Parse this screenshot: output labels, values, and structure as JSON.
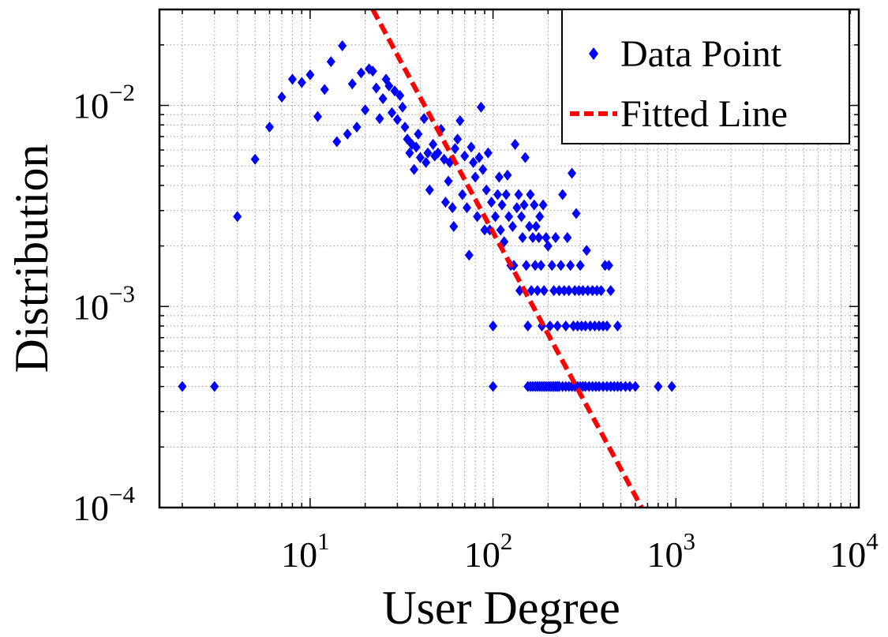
{
  "chart_data": {
    "type": "scatter",
    "xlabel": "User Degree",
    "ylabel": "Distribution",
    "xscale": "log",
    "yscale": "log",
    "xlim": [
      1.5,
      10000
    ],
    "ylim": [
      0.0001,
      0.03
    ],
    "grid": "on",
    "legend_position": "top-right",
    "x_ticks": [
      {
        "base": "10",
        "exp": "1"
      },
      {
        "base": "10",
        "exp": "2"
      },
      {
        "base": "10",
        "exp": "3"
      },
      {
        "base": "10",
        "exp": "4"
      }
    ],
    "y_ticks": [
      {
        "base": "10",
        "exp": "−4"
      },
      {
        "base": "10",
        "exp": "−3"
      },
      {
        "base": "10",
        "exp": "−2"
      }
    ],
    "series": [
      {
        "name": "Data Point",
        "kind": "scatter",
        "marker": "diamond",
        "color": "#0000ff",
        "points": [
          [
            2,
            0.0004
          ],
          [
            3,
            0.0004
          ],
          [
            4,
            0.0028
          ],
          [
            5,
            0.0054
          ],
          [
            6,
            0.0078
          ],
          [
            7,
            0.011
          ],
          [
            8,
            0.0135
          ],
          [
            9,
            0.013
          ],
          [
            10,
            0.0142
          ],
          [
            11,
            0.0088
          ],
          [
            12,
            0.012
          ],
          [
            13,
            0.0165
          ],
          [
            14,
            0.0066
          ],
          [
            15,
            0.0198
          ],
          [
            16,
            0.0072
          ],
          [
            17,
            0.0128
          ],
          [
            18,
            0.0078
          ],
          [
            19,
            0.0145
          ],
          [
            20,
            0.0095
          ],
          [
            21,
            0.0152
          ],
          [
            22,
            0.0148
          ],
          [
            23,
            0.0122
          ],
          [
            24,
            0.0086
          ],
          [
            25,
            0.0108
          ],
          [
            26,
            0.0135
          ],
          [
            27,
            0.0125
          ],
          [
            28,
            0.0092
          ],
          [
            29,
            0.0118
          ],
          [
            30,
            0.0085
          ],
          [
            31,
            0.0112
          ],
          [
            32,
            0.0098
          ],
          [
            33,
            0.0078
          ],
          [
            34,
            0.0068
          ],
          [
            35,
            0.0058
          ],
          [
            36,
            0.0064
          ],
          [
            37,
            0.0048
          ],
          [
            38,
            0.0062
          ],
          [
            39,
            0.0072
          ],
          [
            40,
            0.0055
          ],
          [
            42,
            0.0086
          ],
          [
            43,
            0.0052
          ],
          [
            44,
            0.0058
          ],
          [
            45,
            0.0038
          ],
          [
            47,
            0.0064
          ],
          [
            48,
            0.0056
          ],
          [
            50,
            0.0058
          ],
          [
            52,
            0.0076
          ],
          [
            54,
            0.0054
          ],
          [
            55,
            0.0033
          ],
          [
            57,
            0.0042
          ],
          [
            58,
            0.0052
          ],
          [
            60,
            0.0031
          ],
          [
            61,
            0.0025
          ],
          [
            62,
            0.0061
          ],
          [
            64,
            0.0068
          ],
          [
            66,
            0.0084
          ],
          [
            68,
            0.0036
          ],
          [
            70,
            0.0056
          ],
          [
            72,
            0.0031
          ],
          [
            74,
            0.0018
          ],
          [
            76,
            0.0062
          ],
          [
            78,
            0.0052
          ],
          [
            80,
            0.0044
          ],
          [
            82,
            0.0028
          ],
          [
            84,
            0.0055
          ],
          [
            86,
            0.0098
          ],
          [
            88,
            0.0048
          ],
          [
            90,
            0.0024
          ],
          [
            92,
            0.0038
          ],
          [
            94,
            0.0058
          ],
          [
            96,
            0.0024
          ],
          [
            98,
            0.0033
          ],
          [
            100,
            0.0008
          ],
          [
            100,
            0.0004
          ],
          [
            103,
            0.0028
          ],
          [
            106,
            0.0036
          ],
          [
            108,
            0.0044
          ],
          [
            110,
            0.0024
          ],
          [
            112,
            0.0032
          ],
          [
            115,
            0.0021
          ],
          [
            118,
            0.0036
          ],
          [
            120,
            0.0045
          ],
          [
            122,
            0.0028
          ],
          [
            125,
            0.0016
          ],
          [
            128,
            0.0025
          ],
          [
            130,
            0.0016
          ],
          [
            132,
            0.0064
          ],
          [
            135,
            0.0031
          ],
          [
            138,
            0.0036
          ],
          [
            140,
            0.0012
          ],
          [
            143,
            0.0028
          ],
          [
            145,
            0.0022
          ],
          [
            148,
            0.0032
          ],
          [
            150,
            0.0055
          ],
          [
            152,
            0.0016
          ],
          [
            155,
            0.0008
          ],
          [
            158,
            0.0025
          ],
          [
            160,
            0.0036
          ],
          [
            162,
            0.0012
          ],
          [
            165,
            0.0022
          ],
          [
            168,
            0.0032
          ],
          [
            170,
            0.0016
          ],
          [
            172,
            0.0025
          ],
          [
            175,
            0.0012
          ],
          [
            178,
            0.0022
          ],
          [
            180,
            0.0028
          ],
          [
            183,
            0.0016
          ],
          [
            185,
            0.0008
          ],
          [
            188,
            0.0032
          ],
          [
            190,
            0.0012
          ],
          [
            195,
            0.0022
          ],
          [
            200,
            0.002
          ],
          [
            205,
            0.0008
          ],
          [
            210,
            0.0016
          ],
          [
            215,
            0.0012
          ],
          [
            220,
            0.0022
          ],
          [
            225,
            0.0008
          ],
          [
            230,
            0.0012
          ],
          [
            235,
            0.0016
          ],
          [
            240,
            0.0036
          ],
          [
            245,
            0.0012
          ],
          [
            250,
            0.0008
          ],
          [
            255,
            0.0022
          ],
          [
            260,
            0.0012
          ],
          [
            265,
            0.0016
          ],
          [
            270,
            0.0046
          ],
          [
            275,
            0.0008
          ],
          [
            280,
            0.0012
          ],
          [
            285,
            0.0029
          ],
          [
            290,
            0.0008
          ],
          [
            295,
            0.0012
          ],
          [
            300,
            0.0016
          ],
          [
            305,
            0.0008
          ],
          [
            310,
            0.0012
          ],
          [
            320,
            0.0008
          ],
          [
            325,
            0.0019
          ],
          [
            330,
            0.0012
          ],
          [
            340,
            0.0008
          ],
          [
            350,
            0.0012
          ],
          [
            360,
            0.0008
          ],
          [
            370,
            0.0012
          ],
          [
            380,
            0.0008
          ],
          [
            390,
            0.0012
          ],
          [
            400,
            0.0008
          ],
          [
            410,
            0.0016
          ],
          [
            420,
            0.0008
          ],
          [
            430,
            0.0016
          ],
          [
            440,
            0.0012
          ],
          [
            480,
            0.0008
          ],
          [
            155,
            0.0004
          ],
          [
            160,
            0.0004
          ],
          [
            165,
            0.0004
          ],
          [
            170,
            0.0004
          ],
          [
            175,
            0.0004
          ],
          [
            180,
            0.0004
          ],
          [
            185,
            0.0004
          ],
          [
            190,
            0.0004
          ],
          [
            195,
            0.0004
          ],
          [
            200,
            0.0004
          ],
          [
            205,
            0.0004
          ],
          [
            210,
            0.0004
          ],
          [
            215,
            0.0004
          ],
          [
            220,
            0.0004
          ],
          [
            225,
            0.0004
          ],
          [
            230,
            0.0004
          ],
          [
            240,
            0.0004
          ],
          [
            250,
            0.0004
          ],
          [
            260,
            0.0004
          ],
          [
            270,
            0.0004
          ],
          [
            280,
            0.0004
          ],
          [
            290,
            0.0004
          ],
          [
            300,
            0.0004
          ],
          [
            310,
            0.0004
          ],
          [
            320,
            0.0004
          ],
          [
            335,
            0.0004
          ],
          [
            350,
            0.0004
          ],
          [
            365,
            0.0004
          ],
          [
            380,
            0.0004
          ],
          [
            400,
            0.0004
          ],
          [
            420,
            0.0004
          ],
          [
            440,
            0.0004
          ],
          [
            460,
            0.0004
          ],
          [
            480,
            0.0004
          ],
          [
            500,
            0.0004
          ],
          [
            530,
            0.0004
          ],
          [
            560,
            0.0004
          ],
          [
            600,
            0.0004
          ],
          [
            800,
            0.0004
          ],
          [
            950,
            0.0004
          ]
        ]
      },
      {
        "name": "Fitted Line",
        "kind": "line",
        "style": "dashed",
        "color": "#ff0000",
        "points": [
          [
            22,
            0.03
          ],
          [
            650,
            0.0001
          ]
        ]
      }
    ]
  }
}
